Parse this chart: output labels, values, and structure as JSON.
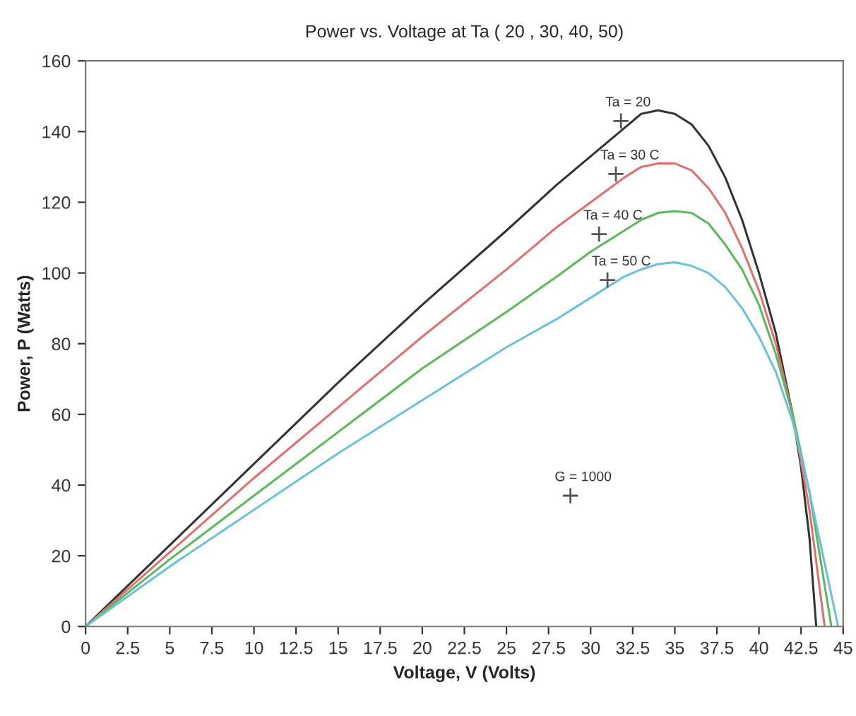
{
  "chart_data": {
    "type": "line",
    "title": "Power vs. Voltage at Ta ( 20 , 30, 40, 50)",
    "xlabel": "Voltage, V (Volts)",
    "ylabel": "Power, P (Watts)",
    "xlim": [
      0,
      45
    ],
    "ylim": [
      0,
      160
    ],
    "xticks": [
      0,
      2.5,
      5,
      7.5,
      10,
      12.5,
      15,
      17.5,
      20,
      22.5,
      25,
      27.5,
      30,
      32.5,
      35,
      37.5,
      40,
      42.5,
      45
    ],
    "yticks": [
      0,
      20,
      40,
      60,
      80,
      100,
      120,
      140,
      160
    ],
    "grid": false,
    "legend": false,
    "marker": "none",
    "line_style": "solid",
    "series": [
      {
        "color": "#333333",
        "x": [
          0,
          5,
          10,
          15,
          20,
          25,
          28,
          30,
          32,
          33,
          34,
          35,
          36,
          37,
          38,
          39,
          40,
          41,
          42,
          42.5,
          43,
          43.4
        ],
        "values": [
          0,
          23,
          46,
          69,
          91,
          112,
          125,
          133,
          141,
          145,
          146,
          145,
          142,
          136,
          127,
          115,
          100,
          83,
          60,
          45,
          25,
          0
        ]
      },
      {
        "color": "#e07070",
        "x": [
          0,
          5,
          10,
          15,
          20,
          25,
          28,
          30,
          32,
          33,
          34,
          35,
          36,
          37,
          38,
          39,
          40,
          41,
          42,
          43,
          43.9
        ],
        "values": [
          0,
          21,
          42,
          62,
          82,
          101,
          113,
          120,
          127,
          130,
          131,
          131,
          129,
          124,
          117,
          107,
          95,
          80,
          60,
          33,
          0
        ]
      },
      {
        "color": "#5cb85c",
        "x": [
          0,
          5,
          10,
          15,
          20,
          25,
          28,
          30,
          32,
          33,
          34,
          35,
          36,
          37,
          38,
          39,
          40,
          41,
          42,
          43,
          44.3
        ],
        "values": [
          0,
          19,
          37,
          55,
          73,
          89,
          99,
          106,
          112,
          115,
          117,
          117.5,
          117,
          114,
          108,
          101,
          91,
          77,
          60,
          38,
          0
        ]
      },
      {
        "color": "#6cc0d8",
        "x": [
          0,
          5,
          10,
          15,
          20,
          25,
          28,
          30,
          32,
          33,
          34,
          35,
          36,
          37,
          38,
          39,
          40,
          41,
          42,
          43,
          44.7
        ],
        "values": [
          0,
          17,
          33,
          49,
          64,
          79,
          87,
          93,
          99,
          101,
          102.5,
          103,
          102,
          100,
          96,
          90,
          82,
          72,
          58,
          38,
          0
        ]
      },
      {
        "type": "scatter",
        "color": "#555555",
        "marker": "cross",
        "x": [
          31.8,
          31.5,
          30.5,
          31,
          28.8
        ],
        "values": [
          143,
          128,
          111,
          98,
          37
        ]
      }
    ],
    "annotations": [
      {
        "text": "Ta = 20",
        "x": 31.8,
        "y": 143
      },
      {
        "text": "Ta = 30 C",
        "x": 31.5,
        "y": 128
      },
      {
        "text": "Ta = 40 C",
        "x": 30.5,
        "y": 111
      },
      {
        "text": "Ta = 50 C",
        "x": 31,
        "y": 98
      },
      {
        "text": "G = 1000",
        "x": 28.8,
        "y": 37
      }
    ]
  }
}
